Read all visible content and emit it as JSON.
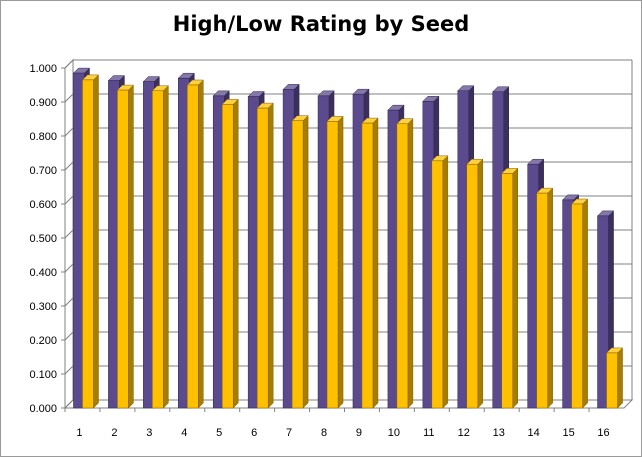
{
  "chart_data": {
    "type": "bar",
    "title": "High/Low Rating by Seed",
    "xlabel": "",
    "ylabel": "",
    "categories": [
      "1",
      "2",
      "3",
      "4",
      "5",
      "6",
      "7",
      "8",
      "9",
      "10",
      "11",
      "12",
      "13",
      "14",
      "15",
      "16"
    ],
    "series": [
      {
        "color": "#5b4a8e",
        "values": [
          0.985,
          0.963,
          0.96,
          0.97,
          0.918,
          0.916,
          0.937,
          0.918,
          0.923,
          0.876,
          0.902,
          0.933,
          0.93,
          0.717,
          0.612,
          0.565
        ]
      },
      {
        "color": "#ffc000",
        "values": [
          0.965,
          0.935,
          0.933,
          0.95,
          0.893,
          0.882,
          0.845,
          0.843,
          0.838,
          0.836,
          0.727,
          0.717,
          0.69,
          0.632,
          0.6,
          0.162
        ]
      }
    ],
    "ylim": [
      0,
      1.0
    ],
    "yticks": [
      "0.000",
      "0.100",
      "0.200",
      "0.300",
      "0.400",
      "0.500",
      "0.600",
      "0.700",
      "0.800",
      "0.900",
      "1.000"
    ],
    "grid": true,
    "legend": "none"
  }
}
